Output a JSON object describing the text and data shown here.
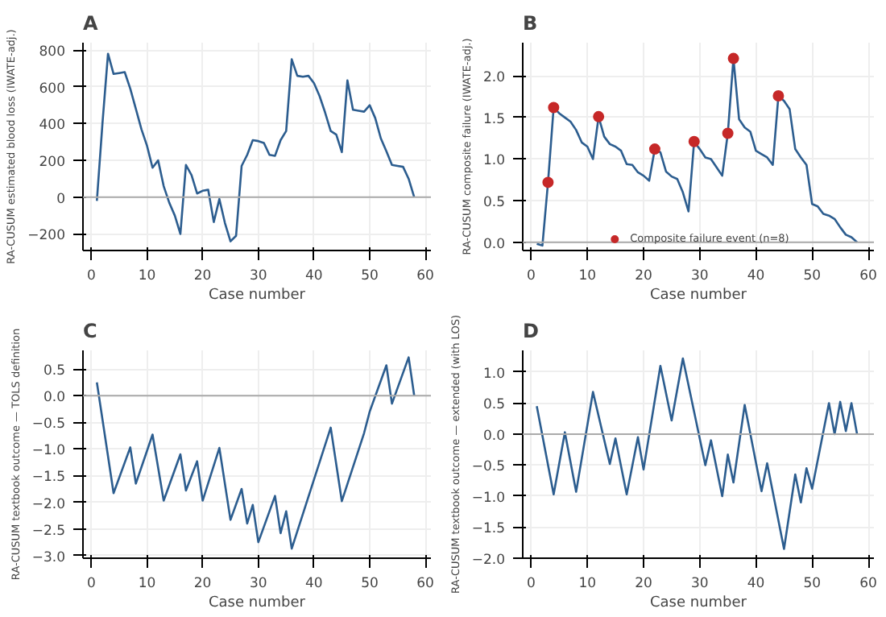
{
  "chart_data": [
    {
      "type": "line",
      "title": "A",
      "xlabel": "Case number",
      "ylabel": "RA-CUSUM estimated blood loss (IWATE-adj.)",
      "xlim": [
        -1.5,
        61
      ],
      "ylim": [
        -290,
        840
      ],
      "xticks": [
        0,
        10,
        20,
        30,
        40,
        50,
        60
      ],
      "yticks": [
        -200,
        0,
        200,
        400,
        600,
        800
      ],
      "grid": true,
      "ref_lines": [
        {
          "axis": "y",
          "value": 0,
          "color": "#aaaaaa"
        }
      ],
      "series": [
        {
          "color": "#2c5d8f",
          "x": [
            1,
            2,
            3,
            4,
            5,
            6,
            7,
            8,
            9,
            10,
            11,
            12,
            13,
            14,
            15,
            16,
            17,
            18,
            19,
            20,
            21,
            22,
            23,
            24,
            25,
            26,
            27,
            28,
            29,
            30,
            31,
            32,
            33,
            34,
            35,
            36,
            37,
            38,
            39,
            40,
            41,
            42,
            43,
            44,
            45,
            46,
            47,
            48,
            49,
            50,
            51,
            52,
            53,
            54,
            55,
            56,
            57,
            58
          ],
          "values": [
            -20,
            400,
            780,
            670,
            675,
            680,
            590,
            480,
            370,
            280,
            160,
            200,
            60,
            -30,
            -100,
            -200,
            175,
            120,
            20,
            35,
            40,
            -135,
            -10,
            -140,
            -240,
            -210,
            170,
            230,
            310,
            305,
            295,
            230,
            225,
            310,
            360,
            750,
            660,
            655,
            660,
            620,
            550,
            460,
            360,
            340,
            245,
            635,
            475,
            470,
            465,
            500,
            430,
            320,
            250,
            175,
            170,
            165,
            100,
            0
          ]
        }
      ]
    },
    {
      "type": "line",
      "title": "B",
      "xlabel": "Case number",
      "ylabel": "RA-CUSUM composite failure (IWATE-adj.)",
      "xlim": [
        -1.5,
        61
      ],
      "ylim": [
        -0.1,
        2.4
      ],
      "xticks": [
        0,
        10,
        20,
        30,
        40,
        50,
        60
      ],
      "yticks": [
        {
          "value": 0,
          "label": "0.0"
        },
        0.5,
        {
          "value": 1,
          "label": "1.0"
        },
        1.5,
        {
          "value": 2,
          "label": "2.0"
        }
      ],
      "grid": true,
      "legend": "bottom",
      "ref_lines": [
        {
          "axis": "y",
          "value": 0,
          "color": "#aaaaaa"
        }
      ],
      "series": [
        {
          "color": "#2c5d8f",
          "x": [
            1,
            2,
            3,
            4,
            5,
            6,
            7,
            8,
            9,
            10,
            11,
            12,
            13,
            14,
            15,
            16,
            17,
            18,
            19,
            20,
            21,
            22,
            23,
            24,
            25,
            26,
            27,
            28,
            29,
            30,
            31,
            32,
            33,
            34,
            35,
            36,
            37,
            38,
            39,
            40,
            41,
            42,
            43,
            44,
            45,
            46,
            47,
            48,
            49,
            50,
            51,
            52,
            53,
            54,
            55,
            56,
            57,
            58
          ],
          "values": [
            -0.02,
            -0.04,
            0.72,
            1.62,
            1.55,
            1.5,
            1.45,
            1.35,
            1.2,
            1.15,
            1.0,
            1.51,
            1.27,
            1.18,
            1.15,
            1.1,
            0.94,
            0.93,
            0.84,
            0.8,
            0.74,
            1.12,
            1.08,
            0.85,
            0.79,
            0.76,
            0.6,
            0.37,
            1.21,
            1.12,
            1.02,
            1.0,
            0.9,
            0.8,
            1.31,
            2.21,
            1.48,
            1.38,
            1.33,
            1.1,
            1.06,
            1.02,
            0.93,
            1.76,
            1.7,
            1.6,
            1.12,
            1.02,
            0.93,
            0.46,
            0.43,
            0.34,
            0.32,
            0.28,
            0.18,
            0.09,
            0.06,
            0
          ]
        },
        {
          "type": "scatter",
          "name": "Composite failure event (n=8)",
          "color": "#c62828",
          "marker": "circle",
          "x": [
            3,
            4,
            12,
            22,
            29,
            35,
            36,
            44
          ],
          "values": [
            0.72,
            1.62,
            1.51,
            1.12,
            1.21,
            1.31,
            2.21,
            1.76
          ]
        }
      ]
    },
    {
      "type": "line",
      "title": "C",
      "xlabel": "Case number",
      "ylabel": "RA-CUSUM textbook outcome — TOLS definition",
      "xlim": [
        -1.5,
        61
      ],
      "ylim": [
        -3.05,
        0.85
      ],
      "xticks": [
        0,
        10,
        20,
        30,
        40,
        50,
        60
      ],
      "yticks": [
        {
          "value": -3,
          "label": "−3.0"
        },
        -2.5,
        {
          "value": -2,
          "label": "−2.0"
        },
        -1.5,
        {
          "value": -1,
          "label": "−1.0"
        },
        -0.5,
        {
          "value": 0,
          "label": "0.0"
        },
        0.5
      ],
      "grid": true,
      "ref_lines": [
        {
          "axis": "y",
          "value": 0,
          "color": "#aaaaaa"
        }
      ],
      "series": [
        {
          "color": "#2c5d8f",
          "x": [
            1,
            4,
            7,
            8,
            11,
            13,
            16,
            17,
            19,
            20,
            23,
            25,
            27,
            28,
            29,
            30,
            33,
            34,
            35,
            36,
            43,
            45,
            49,
            50,
            53,
            54,
            57,
            58
          ],
          "values": [
            0.25,
            -1.83,
            -0.97,
            -1.65,
            -0.73,
            -1.97,
            -1.1,
            -1.78,
            -1.23,
            -1.97,
            -0.98,
            -2.33,
            -1.75,
            -2.4,
            -2.05,
            -2.75,
            -1.88,
            -2.58,
            -2.17,
            -2.87,
            -0.6,
            -1.98,
            -0.7,
            -0.3,
            0.57,
            -0.15,
            0.72,
            0
          ]
        }
      ]
    },
    {
      "type": "line",
      "title": "D",
      "xlabel": "Case number",
      "ylabel": "RA-CUSUM textbook outcome — extended (with LOS)",
      "xlim": [
        -1.5,
        61
      ],
      "ylim": [
        -2.0,
        1.35
      ],
      "xticks": [
        0,
        10,
        20,
        30,
        40,
        50,
        60
      ],
      "yticks": [
        {
          "value": -2,
          "label": "−2.0"
        },
        -1.5,
        {
          "value": -1,
          "label": "−1.0"
        },
        -0.5,
        {
          "value": 0,
          "label": "0.0"
        },
        0.5,
        {
          "value": 1,
          "label": "1.0"
        }
      ],
      "grid": true,
      "ref_lines": [
        {
          "axis": "y",
          "value": 0,
          "color": "#aaaaaa"
        }
      ],
      "series": [
        {
          "color": "#2c5d8f",
          "x": [
            1,
            4,
            6,
            8,
            11,
            14,
            15,
            17,
            19,
            20,
            23,
            25,
            27,
            31,
            32,
            34,
            35,
            36,
            38,
            41,
            42,
            45,
            47,
            48,
            49,
            50,
            53,
            54,
            55,
            56,
            57,
            58
          ],
          "values": [
            0.45,
            -0.97,
            0.03,
            -0.93,
            0.68,
            -0.48,
            -0.07,
            -0.97,
            -0.05,
            -0.57,
            1.1,
            0.22,
            1.22,
            -0.5,
            -0.1,
            -1.0,
            -0.33,
            -0.78,
            0.47,
            -0.92,
            -0.47,
            -1.85,
            -0.65,
            -1.1,
            -0.55,
            -0.88,
            0.5,
            0.0,
            0.52,
            0.05,
            0.5,
            0.0
          ]
        }
      ]
    }
  ]
}
